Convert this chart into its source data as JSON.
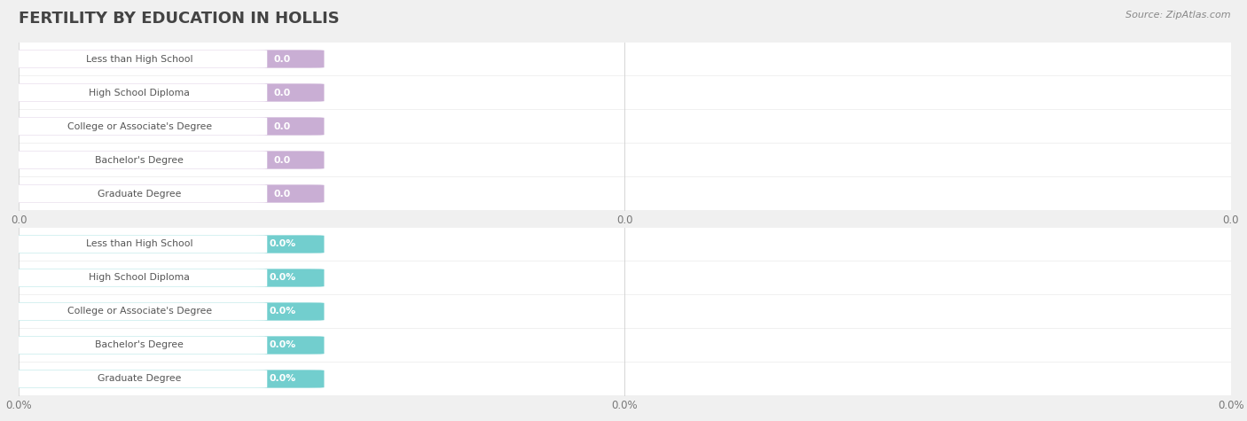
{
  "title": "FERTILITY BY EDUCATION IN HOLLIS",
  "source": "Source: ZipAtlas.com",
  "categories": [
    "Less than High School",
    "High School Diploma",
    "College or Associate's Degree",
    "Bachelor's Degree",
    "Graduate Degree"
  ],
  "values_top": [
    0.0,
    0.0,
    0.0,
    0.0,
    0.0
  ],
  "values_bottom": [
    0.0,
    0.0,
    0.0,
    0.0,
    0.0
  ],
  "bar_color_top": "#c9aed4",
  "bar_color_bottom": "#72cece",
  "value_label_top": [
    "0.0",
    "0.0",
    "0.0",
    "0.0",
    "0.0"
  ],
  "value_label_bottom": [
    "0.0%",
    "0.0%",
    "0.0%",
    "0.0%",
    "0.0%"
  ],
  "bg_color": "#f0f0f0",
  "row_bg_color": "#ffffff",
  "row_alt_color": "#f7f7f7",
  "grid_color": "#cccccc",
  "title_color": "#444444",
  "source_color": "#888888",
  "xtick_top": [
    "0.0",
    "0.0",
    "0.0"
  ],
  "xtick_bottom": [
    "0.0%",
    "0.0%",
    "0.0%"
  ],
  "xlim": [
    0.0,
    1.0
  ],
  "xtick_positions": [
    0.0,
    0.5,
    1.0
  ],
  "title_fontsize": 13,
  "source_fontsize": 8,
  "cat_fontsize": 7.8,
  "val_fontsize": 7.8
}
